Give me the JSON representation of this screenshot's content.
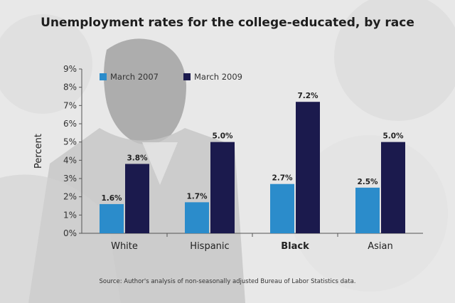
{
  "chart_data": {
    "type": "bar",
    "title": "Unemployment rates for the college-educated, by race",
    "ylabel": "Percent",
    "xlabel": "",
    "ylim": [
      0,
      9
    ],
    "yticks": [
      "0%",
      "1%",
      "2%",
      "3%",
      "4%",
      "5%",
      "6%",
      "7%",
      "8%",
      "9%"
    ],
    "categories": [
      "White",
      "Hispanic",
      "Black",
      "Asian"
    ],
    "emphasized_category": "Black",
    "series": [
      {
        "name": "March 2007",
        "color": "#2b8ccb",
        "values": [
          1.6,
          1.7,
          2.7,
          2.5
        ],
        "labels": [
          "1.6%",
          "1.7%",
          "2.7%",
          "2.5%"
        ]
      },
      {
        "name": "March 2009",
        "color": "#1b1a4d",
        "values": [
          3.8,
          5.0,
          7.2,
          5.0
        ],
        "labels": [
          "3.8%",
          "5.0%",
          "7.2%",
          "5.0%"
        ]
      }
    ],
    "legend_position": "top-left",
    "grid": false,
    "source": "Source: Author's analysis of non-seasonally adjusted Bureau of Labor Statistics data."
  }
}
